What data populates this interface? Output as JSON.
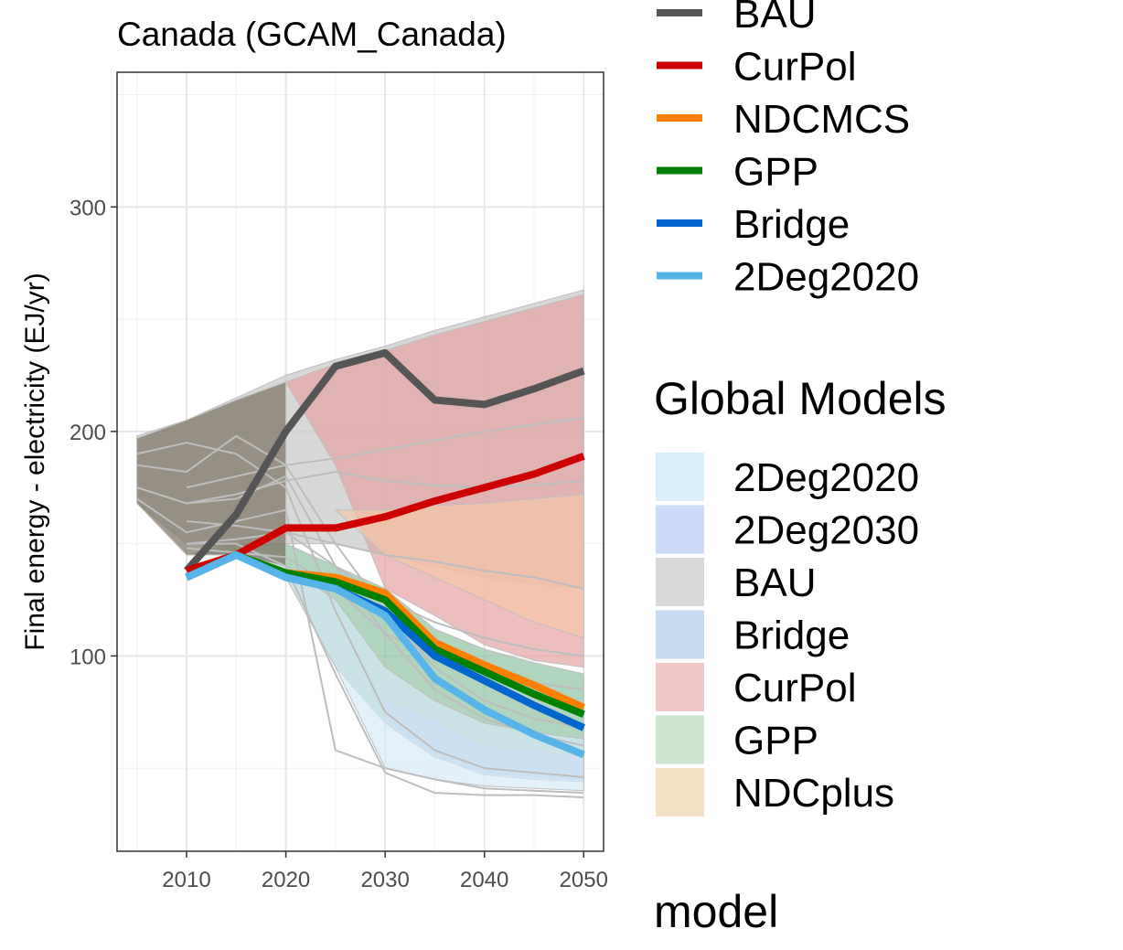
{
  "chart_data": {
    "type": "line",
    "title": "Canada (GCAM_Canada)",
    "xlabel": "",
    "ylabel": "Final energy - electricity (EJ/yr)",
    "xlim": [
      2003,
      2052
    ],
    "ylim": [
      13,
      360
    ],
    "x_ticks": [
      2010,
      2020,
      2030,
      2040,
      2050
    ],
    "y_ticks": [
      100,
      200,
      300
    ],
    "grid": true,
    "series": [
      {
        "name": "BAU",
        "color": "#555555",
        "x": [
          2010,
          2015,
          2020,
          2025,
          2030,
          2035,
          2040,
          2045,
          2050
        ],
        "y": [
          138,
          163,
          200,
          229,
          235,
          214,
          212,
          219,
          227
        ]
      },
      {
        "name": "CurPol",
        "color": "#cc0000",
        "x": [
          2010,
          2015,
          2020,
          2025,
          2030,
          2035,
          2040,
          2045,
          2050
        ],
        "y": [
          138,
          145,
          157,
          157,
          162,
          169,
          175,
          181,
          189
        ]
      },
      {
        "name": "NDCMCS",
        "color": "#ff7f00",
        "x": [
          2010,
          2015,
          2020,
          2025,
          2030,
          2035,
          2040,
          2045,
          2050
        ],
        "y": [
          135,
          145,
          137,
          135,
          128,
          106,
          96,
          87,
          77
        ]
      },
      {
        "name": "GPP",
        "color": "#008000",
        "x": [
          2010,
          2015,
          2020,
          2025,
          2030,
          2035,
          2040,
          2045,
          2050
        ],
        "y": [
          135,
          145,
          137,
          133,
          125,
          103,
          93,
          83,
          74
        ]
      },
      {
        "name": "Bridge",
        "color": "#0066cc",
        "x": [
          2010,
          2015,
          2020,
          2025,
          2030,
          2035,
          2040,
          2045,
          2050
        ],
        "y": [
          135,
          145,
          135,
          130,
          120,
          100,
          89,
          78,
          68
        ]
      },
      {
        "name": "2Deg2020",
        "color": "#56b4e9",
        "x": [
          2010,
          2015,
          2020,
          2025,
          2030,
          2035,
          2040,
          2045,
          2050
        ],
        "y": [
          135,
          145,
          135,
          130,
          118,
          90,
          76,
          65,
          56
        ]
      }
    ],
    "ranges": [
      {
        "name": "BAU",
        "fill": "#c8c8c8",
        "x": [
          2005,
          2010,
          2015,
          2020,
          2025,
          2030,
          2035,
          2040,
          2045,
          2050
        ],
        "low": [
          168,
          150,
          148,
          150,
          150,
          145,
          140,
          135,
          132,
          130
        ],
        "high": [
          198,
          205,
          215,
          225,
          232,
          238,
          245,
          251,
          257,
          263
        ]
      },
      {
        "name": "CurPol",
        "fill": "#e6a3a3",
        "x": [
          2020,
          2025,
          2030,
          2035,
          2040,
          2045,
          2050
        ],
        "low": [
          222,
          185,
          130,
          118,
          105,
          98,
          95
        ],
        "high": [
          222,
          230,
          236,
          243,
          249,
          255,
          261
        ]
      },
      {
        "name": "NDCplus",
        "fill": "#f4c8a8",
        "x": [
          2025,
          2030,
          2035,
          2040,
          2045,
          2050
        ],
        "low": [
          165,
          145,
          135,
          125,
          115,
          108
        ],
        "high": [
          165,
          165,
          167,
          168,
          170,
          172
        ]
      },
      {
        "name": "GPP",
        "fill": "#8fc2a2",
        "x": [
          2010,
          2015,
          2020,
          2025,
          2030,
          2035,
          2040,
          2045,
          2050
        ],
        "low": [
          145,
          145,
          135,
          95,
          70,
          55,
          48,
          46,
          45
        ],
        "high": [
          145,
          150,
          150,
          140,
          130,
          112,
          103,
          97,
          92
        ]
      },
      {
        "name": "2Deg2030",
        "fill": "#b8c8f0",
        "x": [
          2030,
          2035,
          2040,
          2045,
          2050
        ],
        "low": [
          70,
          55,
          47,
          45,
          44
        ],
        "high": [
          80,
          72,
          60,
          58,
          55
        ]
      },
      {
        "name": "2Deg2020",
        "fill": "#d6eaf8",
        "x": [
          2015,
          2020,
          2025,
          2030,
          2035,
          2040,
          2045,
          2050
        ],
        "low": [
          145,
          135,
          95,
          50,
          45,
          42,
          41,
          40
        ],
        "high": [
          150,
          140,
          125,
          95,
          80,
          70,
          66,
          63
        ]
      },
      {
        "name": "Global-dark",
        "fill": "#7a7060",
        "x": [
          2005,
          2010,
          2015,
          2020
        ],
        "low": [
          168,
          145,
          145,
          140
        ],
        "high": [
          197,
          205,
          214,
          222
        ]
      }
    ],
    "background_runs": [
      {
        "x": [
          2005,
          2010,
          2015,
          2020,
          2025,
          2030,
          2035,
          2040,
          2045,
          2050
        ],
        "y": [
          185,
          182,
          198,
          185,
          150,
          120,
          95,
          80,
          72,
          68
        ]
      },
      {
        "x": [
          2005,
          2010,
          2015,
          2020,
          2025,
          2030,
          2035,
          2040,
          2045,
          2050
        ],
        "y": [
          175,
          168,
          170,
          180,
          140,
          110,
          85,
          72,
          65,
          60
        ]
      },
      {
        "x": [
          2005,
          2010,
          2015,
          2020,
          2025,
          2030,
          2035,
          2040,
          2045,
          2050
        ],
        "y": [
          190,
          195,
          190,
          175,
          120,
          75,
          58,
          50,
          48,
          46
        ]
      },
      {
        "x": [
          2005,
          2010,
          2015,
          2020,
          2025,
          2030,
          2035,
          2040,
          2045,
          2050
        ],
        "y": [
          170,
          155,
          160,
          165,
          58,
          50,
          45,
          41,
          40,
          39
        ]
      },
      {
        "x": [
          2010,
          2015,
          2020,
          2025,
          2030,
          2035,
          2040,
          2045,
          2050
        ],
        "y": [
          150,
          150,
          140,
          92,
          48,
          39,
          38,
          38,
          37
        ]
      },
      {
        "x": [
          2010,
          2015,
          2020,
          2025,
          2030,
          2035,
          2040,
          2045,
          2050
        ],
        "y": [
          160,
          158,
          155,
          150,
          145,
          142,
          138,
          135,
          130
        ]
      },
      {
        "x": [
          2010,
          2015,
          2020,
          2025,
          2030,
          2035,
          2040,
          2045,
          2050
        ],
        "y": [
          175,
          180,
          185,
          188,
          192,
          196,
          200,
          203,
          206
        ]
      },
      {
        "x": [
          2010,
          2015,
          2020,
          2025,
          2030,
          2035,
          2040,
          2045,
          2050
        ],
        "y": [
          168,
          172,
          178,
          182,
          178,
          176,
          175,
          176,
          178
        ]
      },
      {
        "x": [
          2010,
          2015,
          2020,
          2025,
          2030,
          2035,
          2040,
          2045,
          2050
        ],
        "y": [
          150,
          152,
          155,
          140,
          125,
          115,
          108,
          103,
          100
        ]
      },
      {
        "x": [
          2010,
          2015,
          2020,
          2025,
          2030,
          2035,
          2040,
          2045,
          2050
        ],
        "y": [
          148,
          146,
          144,
          130,
          110,
          100,
          92,
          88,
          85
        ]
      }
    ],
    "legend_scenario": {
      "items": [
        {
          "label": "BAU",
          "color": "#555555"
        },
        {
          "label": "CurPol",
          "color": "#cc0000"
        },
        {
          "label": "NDCMCS",
          "color": "#ff7f00"
        },
        {
          "label": "GPP",
          "color": "#008000"
        },
        {
          "label": "Bridge",
          "color": "#0066cc"
        },
        {
          "label": "2Deg2020",
          "color": "#56b4e9"
        }
      ]
    },
    "legend_global": {
      "title": "Global Models",
      "items": [
        {
          "label": "2Deg2020",
          "color": "#dbeefb"
        },
        {
          "label": "2Deg2030",
          "color": "#cddaf8"
        },
        {
          "label": "BAU",
          "color": "#d9d9d9"
        },
        {
          "label": "Bridge",
          "color": "#c7dbf2"
        },
        {
          "label": "CurPol",
          "color": "#f2c7c7"
        },
        {
          "label": "GPP",
          "color": "#cce5cc"
        },
        {
          "label": "NDCplus",
          "color": "#f5dfc7"
        }
      ]
    },
    "legend_model_title": "model"
  }
}
